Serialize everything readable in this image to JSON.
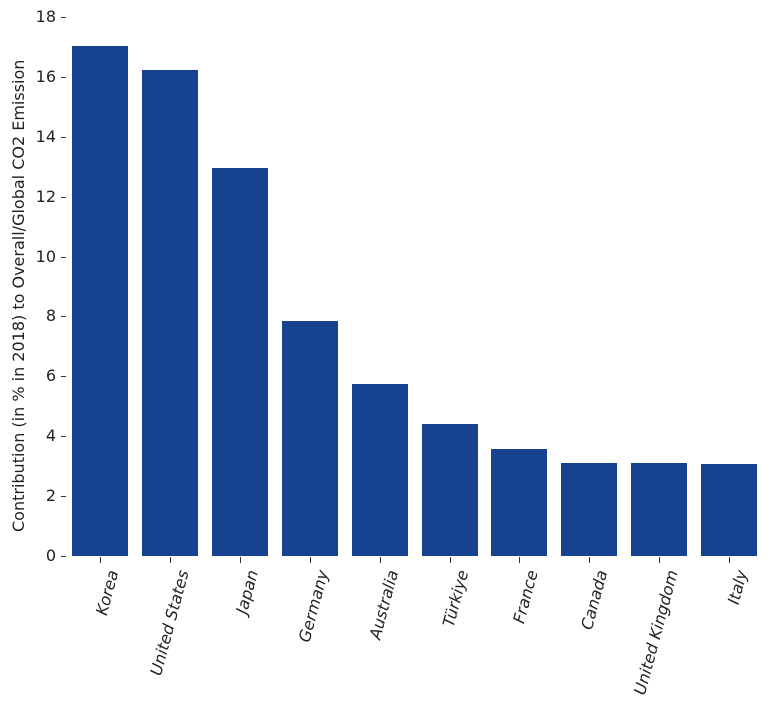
{
  "chart_data": {
    "type": "bar",
    "title": "",
    "xlabel": "",
    "ylabel": "Contribution (in % in 2018) to Overall/Global CO2 Emission",
    "categories": [
      "Korea",
      "United States",
      "Japan",
      "Germany",
      "Australia",
      "Türkiye",
      "France",
      "Canada",
      "United Kingdom",
      "Italy"
    ],
    "values": [
      17.03,
      16.23,
      12.96,
      7.85,
      5.74,
      4.41,
      3.57,
      3.11,
      3.11,
      3.07
    ],
    "ylim": [
      0,
      18
    ],
    "yticks": [
      0,
      2,
      4,
      6,
      8,
      10,
      12,
      14,
      16,
      18
    ],
    "grid": false,
    "legend": null,
    "bar_color": "#17428f",
    "xtick_rotation": 75
  }
}
